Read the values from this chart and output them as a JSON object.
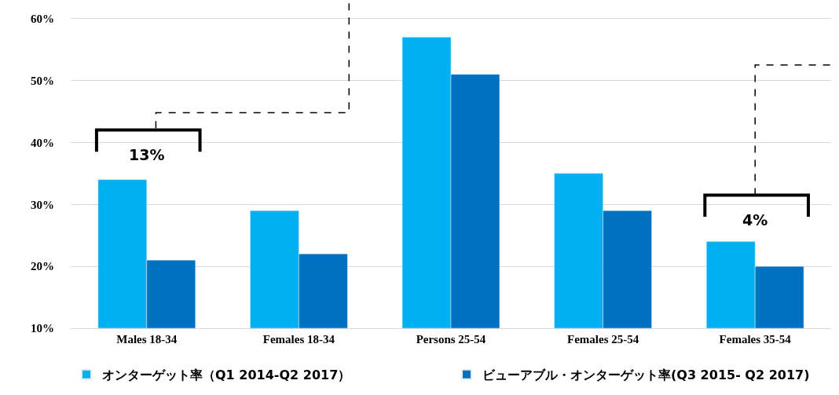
{
  "chart_data": {
    "type": "bar",
    "categories": [
      "Males 18-34",
      "Females 18-34",
      "Persons 25-54",
      "Females 25-54",
      "Females 35-54"
    ],
    "series": [
      {
        "name": "オンターゲット率（Q1 2014-Q2 2017）",
        "color": "#00b0f0",
        "values": [
          34,
          29,
          57,
          35,
          24
        ]
      },
      {
        "name": "ビューアブル・オンターゲット率(Q3 2015- Q2 2017)",
        "color": "#0070c0",
        "values": [
          21,
          22,
          51,
          29,
          20
        ]
      }
    ],
    "ylim": [
      10,
      63
    ],
    "yticks": [
      {
        "value": 10,
        "label": "10%"
      },
      {
        "value": 20,
        "label": "20%"
      },
      {
        "value": 30,
        "label": "30%"
      },
      {
        "value": 40,
        "label": "40%"
      },
      {
        "value": 50,
        "label": "50%"
      },
      {
        "value": 60,
        "label": "60%"
      }
    ],
    "grid": "y",
    "legend": "bottom",
    "annotations": [
      "13%",
      "4%"
    ]
  }
}
